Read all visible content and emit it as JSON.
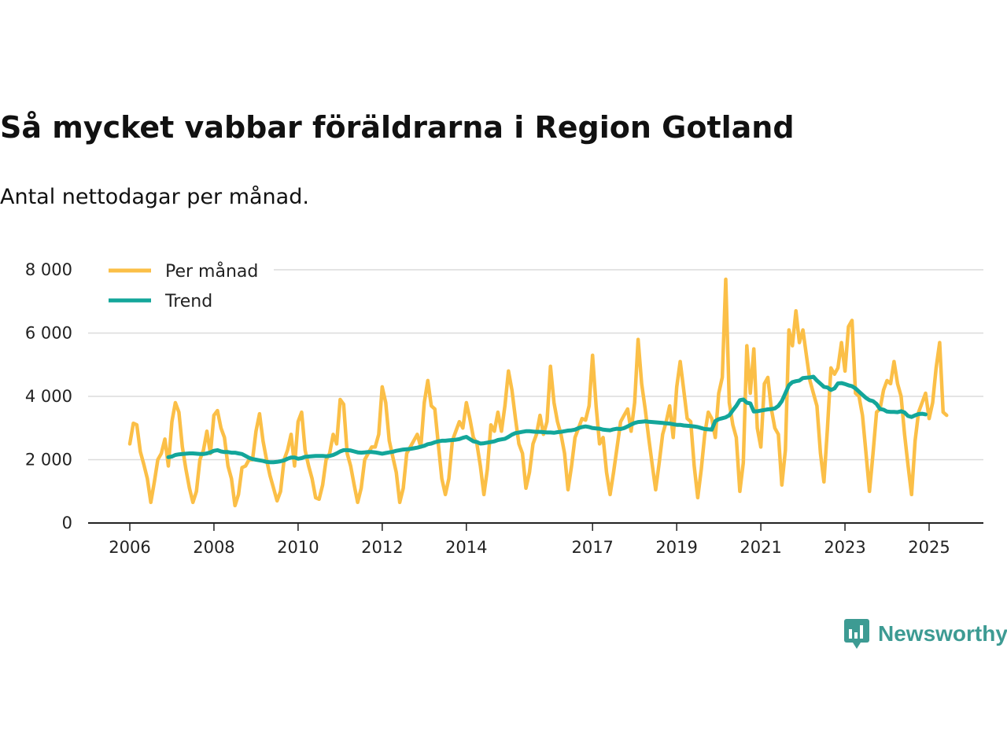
{
  "title": "Så mycket vabbar föräldrarna i Region Gotland",
  "subtitle": "Antal nettodagar per månad.",
  "brand": {
    "name": "Newsworthy",
    "icon": "newsworthy-logo-icon"
  },
  "colors": {
    "monthly": "#fbbf47",
    "trend": "#13a69a",
    "grid": "#dcdcdc",
    "axis": "#222222",
    "brand": "#3d9b93"
  },
  "chart_data": {
    "type": "line",
    "title": "Så mycket vabbar föräldrarna i Region Gotland",
    "subtitle": "Antal nettodagar per månad.",
    "xlabel": "",
    "ylabel": "",
    "ylim": [
      0,
      8000
    ],
    "yticks": [
      0,
      2000,
      4000,
      6000,
      8000
    ],
    "ytick_labels": [
      "0",
      "2 000",
      "4 000",
      "6 000",
      "8 000"
    ],
    "xticks": [
      2006,
      2008,
      2010,
      2012,
      2014,
      2017,
      2019,
      2021,
      2023,
      2025
    ],
    "xtick_labels": [
      "2006",
      "2008",
      "2010",
      "2012",
      "2014",
      "2017",
      "2019",
      "2021",
      "2023",
      "2025"
    ],
    "xlim": [
      2006.0,
      2025.4
    ],
    "legend": {
      "placement": "top-left",
      "entries": [
        "Per månad",
        "Trend"
      ]
    },
    "grid": true,
    "series": [
      {
        "name": "Per månad",
        "start": 2006.0,
        "step_months": 1,
        "values": [
          2500,
          3150,
          3100,
          2250,
          1850,
          1400,
          650,
          1300,
          2000,
          2200,
          2650,
          1800,
          3200,
          3800,
          3500,
          2400,
          1700,
          1100,
          650,
          1000,
          2000,
          2300,
          2900,
          2200,
          3400,
          3550,
          3000,
          2700,
          1800,
          1400,
          550,
          900,
          1750,
          1800,
          2000,
          2000,
          2900,
          3450,
          2600,
          2000,
          1500,
          1100,
          700,
          1000,
          2000,
          2300,
          2800,
          1800,
          3200,
          3500,
          2300,
          1800,
          1400,
          800,
          750,
          1200,
          2000,
          2200,
          2800,
          2500,
          3900,
          3750,
          2200,
          1800,
          1200,
          650,
          1100,
          2000,
          2200,
          2400,
          2400,
          2800,
          4300,
          3800,
          2600,
          2100,
          1600,
          650,
          1100,
          2200,
          2400,
          2600,
          2800,
          2400,
          3800,
          4500,
          3700,
          3600,
          2500,
          1400,
          900,
          1400,
          2600,
          2900,
          3200,
          3000,
          3800,
          3300,
          2700,
          2500,
          1800,
          900,
          1700,
          3100,
          2900,
          3500,
          2900,
          3700,
          4800,
          4200,
          3300,
          2500,
          2200,
          1100,
          1600,
          2500,
          2800,
          3400,
          2800,
          3200,
          4950,
          3800,
          3200,
          2800,
          2200,
          1050,
          1800,
          2700,
          3000,
          3300,
          3250,
          3700,
          5300,
          3700,
          2500,
          2700,
          1600,
          900,
          1600,
          2400,
          3200,
          3400,
          3600,
          2900,
          3800,
          5800,
          4400,
          3600,
          2700,
          1850,
          1050,
          1900,
          2800,
          3200,
          3700,
          2700,
          4300,
          5100,
          4200,
          3300,
          3200,
          1800,
          800,
          1700,
          2800,
          3500,
          3300,
          2700,
          4100,
          4600,
          7700,
          3800,
          3100,
          2700,
          1000,
          1900,
          5600,
          4100,
          5500,
          3000,
          2400,
          4400,
          4600,
          3600,
          3000,
          2800,
          1200,
          2300,
          6100,
          5600,
          6700,
          5700,
          6100,
          5300,
          4500,
          4100,
          3700,
          2200,
          1300,
          3000,
          4900,
          4700,
          4900,
          5700,
          4800,
          6200,
          6400,
          4100,
          4000,
          3400,
          2200,
          1000,
          2200,
          3500,
          3600,
          4200,
          4500,
          4400,
          5100,
          4400,
          4000,
          2800,
          1800,
          900,
          2600,
          3500,
          3800,
          4100,
          3300,
          3800,
          4900,
          5700,
          3500,
          3400
        ]
      },
      {
        "name": "Trend",
        "start": 2006.9167,
        "step_months": 1,
        "values": [
          2080,
          2100,
          2150,
          2170,
          2180,
          2190,
          2200,
          2200,
          2190,
          2180,
          2180,
          2200,
          2230,
          2280,
          2300,
          2260,
          2240,
          2240,
          2220,
          2220,
          2200,
          2180,
          2120,
          2060,
          2020,
          2000,
          1980,
          1960,
          1930,
          1920,
          1920,
          1930,
          1950,
          1980,
          2030,
          2070,
          2070,
          2030,
          2050,
          2090,
          2100,
          2110,
          2120,
          2120,
          2120,
          2110,
          2120,
          2150,
          2200,
          2260,
          2300,
          2300,
          2290,
          2260,
          2230,
          2220,
          2230,
          2240,
          2240,
          2230,
          2210,
          2190,
          2210,
          2230,
          2250,
          2280,
          2300,
          2320,
          2330,
          2340,
          2360,
          2380,
          2410,
          2440,
          2490,
          2510,
          2550,
          2580,
          2600,
          2600,
          2610,
          2620,
          2630,
          2650,
          2690,
          2720,
          2650,
          2580,
          2560,
          2510,
          2520,
          2540,
          2560,
          2580,
          2620,
          2640,
          2660,
          2720,
          2790,
          2840,
          2860,
          2880,
          2900,
          2900,
          2890,
          2880,
          2880,
          2870,
          2860,
          2860,
          2850,
          2870,
          2880,
          2900,
          2920,
          2930,
          2950,
          3000,
          3030,
          3050,
          3030,
          3000,
          2990,
          2980,
          2950,
          2940,
          2930,
          2960,
          2980,
          2970,
          3000,
          3050,
          3110,
          3160,
          3190,
          3200,
          3210,
          3200,
          3190,
          3180,
          3170,
          3160,
          3150,
          3140,
          3120,
          3100,
          3100,
          3080,
          3070,
          3060,
          3050,
          3030,
          3000,
          2970,
          2960,
          2950,
          3220,
          3280,
          3310,
          3340,
          3400,
          3560,
          3700,
          3880,
          3900,
          3800,
          3780,
          3520,
          3530,
          3550,
          3570,
          3590,
          3600,
          3620,
          3700,
          3850,
          4100,
          4350,
          4450,
          4480,
          4500,
          4580,
          4590,
          4600,
          4620,
          4500,
          4400,
          4300,
          4280,
          4200,
          4250,
          4410,
          4420,
          4390,
          4350,
          4320,
          4250,
          4150,
          4050,
          3950,
          3880,
          3850,
          3760,
          3600,
          3580,
          3520,
          3510,
          3510,
          3500,
          3530,
          3490,
          3380,
          3350,
          3400,
          3440,
          3450,
          3430
        ]
      }
    ]
  }
}
